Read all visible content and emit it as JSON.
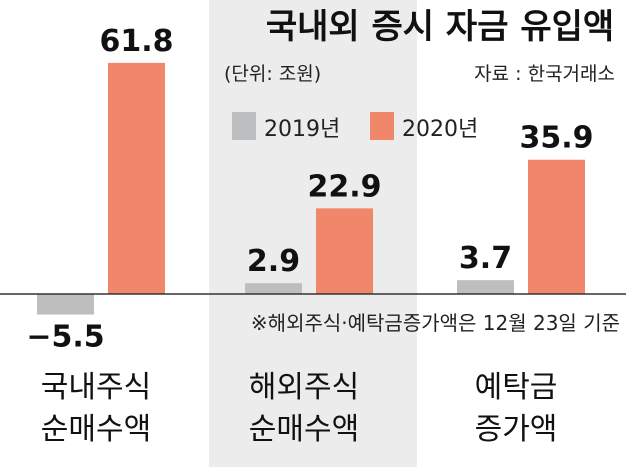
{
  "chart_data": {
    "type": "bar",
    "title": "국내외 증시 자금 유입액",
    "unit_label": "(단위: 조원)",
    "source": "자료 : 한국거래소",
    "note": "※해외주식·예탁금증가액은 12월 23일 기준",
    "categories": [
      [
        "국내주식",
        "순매수액"
      ],
      [
        "해외주식",
        "순매수액"
      ],
      [
        "예탁금",
        "증가액"
      ]
    ],
    "series": [
      {
        "name": "2019년",
        "color": "#bdbec0",
        "values": [
          -5.5,
          2.9,
          3.7
        ],
        "labels": [
          "−5.5",
          "2.9",
          "3.7"
        ]
      },
      {
        "name": "2020년",
        "color": "#f0876a",
        "values": [
          61.8,
          22.9,
          35.9
        ],
        "labels": [
          "61.8",
          "22.9",
          "35.9"
        ]
      }
    ],
    "panel_colors": [
      "#ffffff",
      "#ececec",
      "#ffffff"
    ]
  }
}
